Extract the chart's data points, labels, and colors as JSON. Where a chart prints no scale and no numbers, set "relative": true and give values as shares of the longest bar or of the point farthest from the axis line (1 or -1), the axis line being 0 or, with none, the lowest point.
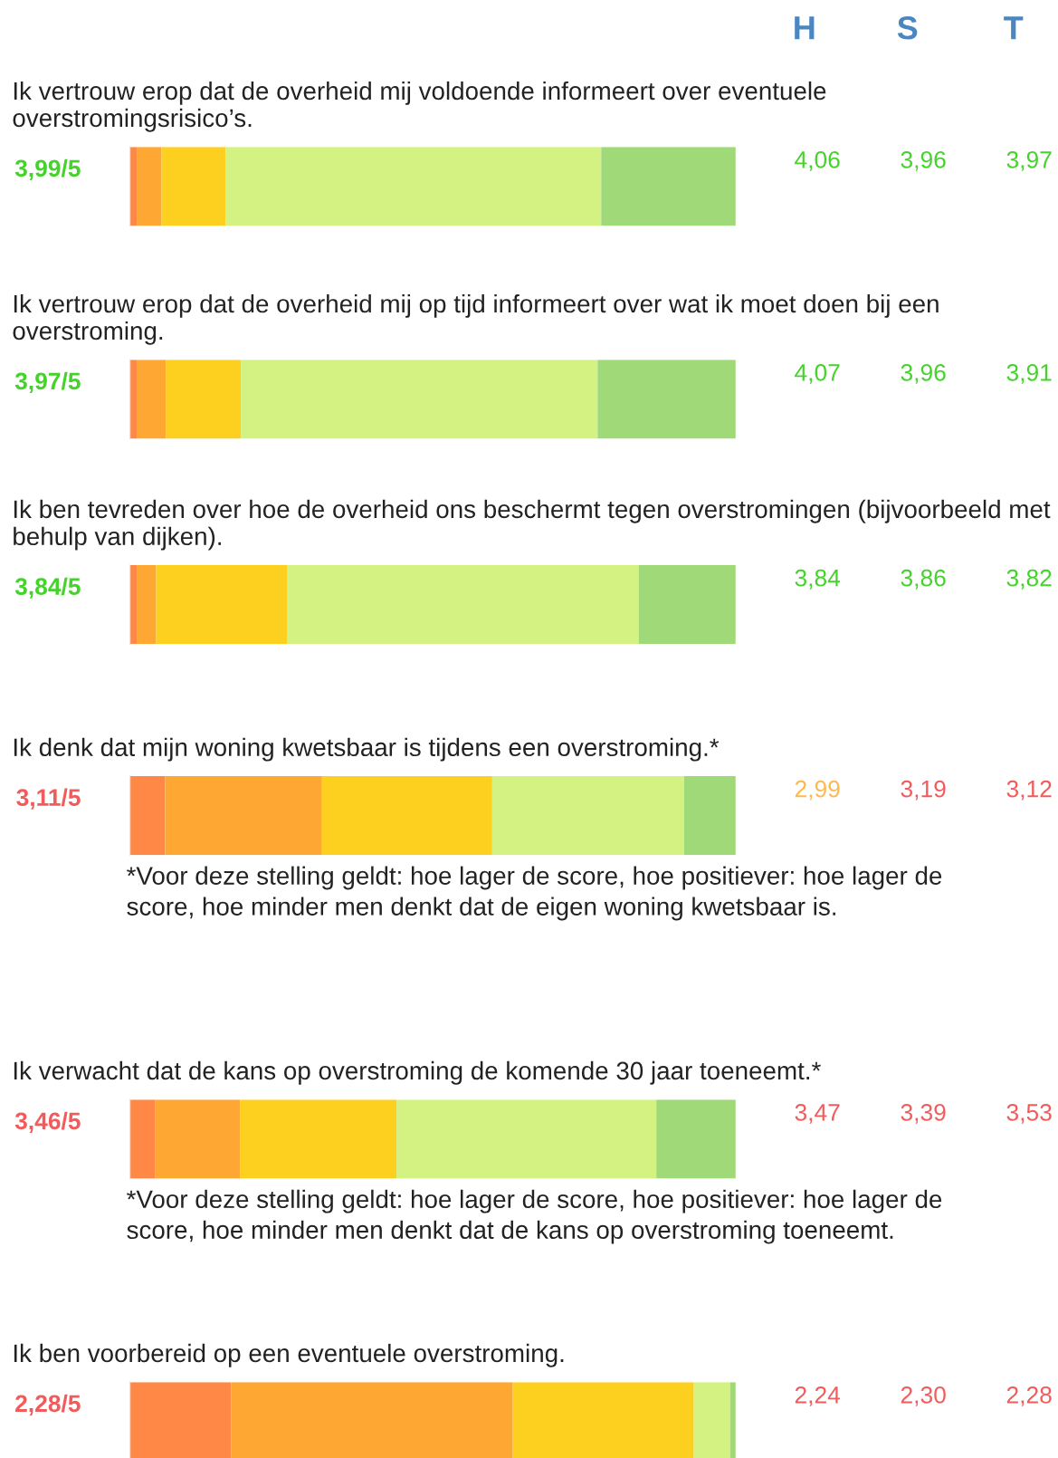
{
  "chart_data": [
    {
      "type": "bar",
      "orientation": "horizontal",
      "stacked": true,
      "relative": true,
      "title": "Ik vertrouw erop dat de overheid mij voldoende informeert over eventuele overstromingsrisico’s.",
      "categories": [
        "3,99/5"
      ],
      "annotations": [
        "H",
        "S",
        "T",
        "4,06",
        "3,96",
        "3,97"
      ],
      "series": [
        {
          "color": "#ff8847",
          "values": [
            0.012
          ]
        },
        {
          "color": "#ffa733",
          "values": [
            0.04
          ]
        },
        {
          "color": "#fdd01f",
          "values": [
            0.106
          ]
        },
        {
          "color": "#d3f281",
          "values": [
            0.62
          ]
        },
        {
          "color": "#9fd978",
          "values": [
            0.222
          ]
        }
      ]
    },
    {
      "type": "bar",
      "orientation": "horizontal",
      "stacked": true,
      "relative": true,
      "title": "Ik vertrouw erop dat de overheid mij op tijd informeert over wat ik moet doen bij een overstroming.",
      "categories": [
        "3,97/5"
      ],
      "annotations": [
        "4,07",
        "3,96",
        "3,91"
      ],
      "series": [
        {
          "color": "#ff8847",
          "values": [
            0.011
          ]
        },
        {
          "color": "#ffa733",
          "values": [
            0.048
          ]
        },
        {
          "color": "#fdd01f",
          "values": [
            0.124
          ]
        },
        {
          "color": "#d3f281",
          "values": [
            0.589
          ]
        },
        {
          "color": "#9fd978",
          "values": [
            0.228
          ]
        }
      ]
    },
    {
      "type": "bar",
      "orientation": "horizontal",
      "stacked": true,
      "relative": true,
      "title": "Ik ben tevreden over hoe de overheid ons beschermt tegen overstromingen (bijvoorbeeld met behulp van dijken).",
      "categories": [
        "3,84/5"
      ],
      "annotations": [
        "3,84",
        "3,86",
        "3,82"
      ],
      "series": [
        {
          "color": "#ff8847",
          "values": [
            0.012
          ]
        },
        {
          "color": "#ffa733",
          "values": [
            0.031
          ]
        },
        {
          "color": "#fdd01f",
          "values": [
            0.216
          ]
        },
        {
          "color": "#d3f281",
          "values": [
            0.581
          ]
        },
        {
          "color": "#9fd978",
          "values": [
            0.16
          ]
        }
      ]
    },
    {
      "type": "bar",
      "orientation": "horizontal",
      "stacked": true,
      "relative": true,
      "title": "Ik denk dat mijn woning kwetsbaar is tijdens een overstroming.*",
      "categories": [
        "3,11/5"
      ],
      "annotations": [
        "2,99",
        "3,19",
        "3,12",
        "*Voor deze stelling geldt: hoe lager de score, hoe positiever: hoe lager de score, hoe minder men denkt dat de eigen woning kwetsbaar is."
      ],
      "series": [
        {
          "color": "#ff8847",
          "values": [
            0.058
          ]
        },
        {
          "color": "#ffa733",
          "values": [
            0.259
          ]
        },
        {
          "color": "#fdd01f",
          "values": [
            0.281
          ]
        },
        {
          "color": "#d3f281",
          "values": [
            0.317
          ]
        },
        {
          "color": "#9fd978",
          "values": [
            0.085
          ]
        }
      ]
    },
    {
      "type": "bar",
      "orientation": "horizontal",
      "stacked": true,
      "relative": true,
      "title": "Ik verwacht dat de kans op overstroming de komende 30 jaar toeneemt.*",
      "categories": [
        "3,46/5"
      ],
      "annotations": [
        "3,47",
        "3,39",
        "3,53",
        "*Voor deze stelling geldt: hoe lager de score, hoe positiever: hoe lager de score, hoe minder men denkt dat de kans op overstroming toeneemt."
      ],
      "series": [
        {
          "color": "#ff8847",
          "values": [
            0.041
          ]
        },
        {
          "color": "#ffa733",
          "values": [
            0.141
          ]
        },
        {
          "color": "#fdd01f",
          "values": [
            0.258
          ]
        },
        {
          "color": "#d3f281",
          "values": [
            0.429
          ]
        },
        {
          "color": "#9fd978",
          "values": [
            0.131
          ]
        }
      ]
    },
    {
      "type": "bar",
      "orientation": "horizontal",
      "stacked": true,
      "relative": true,
      "title": "Ik ben voorbereid op een eventuele overstroming.",
      "categories": [
        "2,28/5"
      ],
      "annotations": [
        "2,24",
        "2,30",
        "2,28"
      ],
      "series": [
        {
          "color": "#ff8847",
          "values": [
            0.167
          ]
        },
        {
          "color": "#ffa733",
          "values": [
            0.465
          ]
        },
        {
          "color": "#fdd01f",
          "values": [
            0.299
          ]
        },
        {
          "color": "#d3f281",
          "values": [
            0.06
          ]
        },
        {
          "color": "#9fd978",
          "values": [
            0.009
          ]
        }
      ]
    }
  ]
}
